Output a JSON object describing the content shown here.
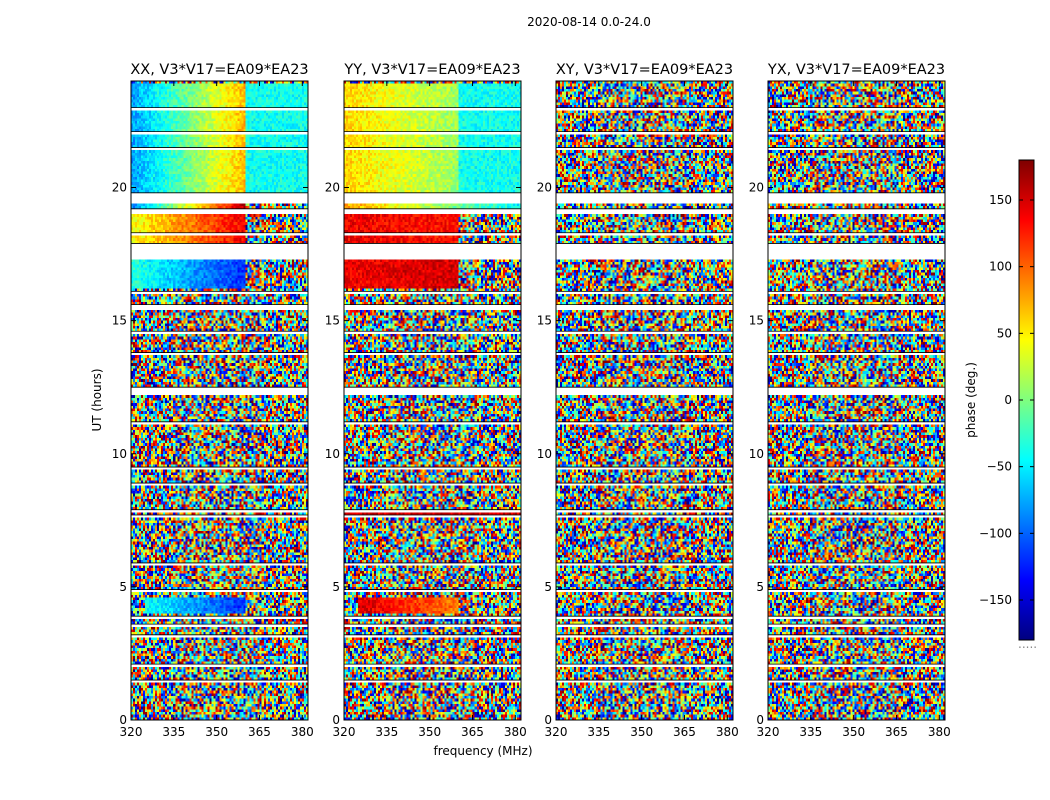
{
  "figure": {
    "suptitle": "2020-08-14 0.0-24.0",
    "xlabel": "frequency (MHz)",
    "ylabel": "UT (hours)",
    "colorbar_label": "phase (deg.)",
    "colorbar_ticks": [
      "150",
      "100",
      "50",
      "0",
      "−50",
      "−100",
      "−150"
    ],
    "colorbar_tick_values": [
      150,
      100,
      50,
      0,
      -50,
      -100,
      -150
    ],
    "colorbar_min_label": ".....",
    "colormap": "jet",
    "colormap_stops": [
      "#00007f",
      "#0000ff",
      "#007fff",
      "#00ffff",
      "#7fff7f",
      "#ffff00",
      "#ff7f00",
      "#ff0000",
      "#7f0000"
    ]
  },
  "chart_data": {
    "type": "heatmap",
    "value": "phase (deg.)",
    "clim": [
      -180,
      180
    ],
    "xlim": [
      320,
      382
    ],
    "ylim": [
      0,
      24
    ],
    "xticks": [
      320,
      335,
      350,
      365,
      380
    ],
    "xtick_labels": [
      "320",
      "335",
      "350",
      "365",
      "380"
    ],
    "yticks": [
      0,
      5,
      10,
      15,
      20
    ],
    "ytick_labels": [
      "0",
      "5",
      "10",
      "15",
      "20"
    ],
    "freq_bins": 88,
    "time_bins": 240,
    "flagged_ut_bands": [
      [
        1.4,
        1.5
      ],
      [
        2.0,
        2.1
      ],
      [
        3.1,
        3.2
      ],
      [
        3.5,
        3.6
      ],
      [
        3.8,
        3.9
      ],
      [
        4.8,
        4.9
      ],
      [
        5.8,
        5.9
      ],
      [
        7.6,
        7.7
      ],
      [
        7.8,
        7.9
      ],
      [
        8.8,
        8.9
      ],
      [
        9.4,
        9.5
      ],
      [
        11.1,
        11.2
      ],
      [
        12.2,
        12.5
      ],
      [
        13.7,
        13.8
      ],
      [
        14.5,
        14.6
      ],
      [
        15.4,
        15.6
      ],
      [
        16.0,
        16.1
      ],
      [
        17.3,
        17.9
      ],
      [
        18.2,
        18.3
      ],
      [
        19.0,
        19.2
      ],
      [
        19.4,
        19.8
      ],
      [
        21.4,
        21.5
      ],
      [
        22.0,
        22.1
      ],
      [
        22.9,
        23.0
      ]
    ],
    "panels": [
      {
        "title": "XX, V3*V17=EA09*EA23",
        "structured_segments": [
          {
            "ut_range": [
              16.2,
              17.3
            ],
            "freq_range": [
              320,
              360
            ],
            "phase_at_min_freq": -30,
            "phase_at_max_freq": -120
          },
          {
            "ut_range": [
              17.9,
              19.0
            ],
            "freq_range": [
              320,
              360
            ],
            "phase_at_min_freq": 40,
            "phase_at_max_freq": 140
          },
          {
            "ut_range": [
              19.2,
              19.4
            ],
            "freq_range": [
              320,
              360
            ],
            "phase_at_min_freq": -90,
            "phase_at_max_freq": 160
          },
          {
            "ut_range": [
              19.8,
              23.9
            ],
            "freq_range": [
              320,
              360
            ],
            "phase_at_min_freq": -80,
            "phase_at_max_freq": 70
          },
          {
            "ut_range": [
              19.8,
              23.9
            ],
            "freq_range": [
              360,
              382
            ],
            "phase_at_min_freq": -40,
            "phase_at_max_freq": -40
          },
          {
            "ut_range": [
              4.0,
              4.6
            ],
            "freq_range": [
              325,
              360
            ],
            "phase_at_min_freq": -40,
            "phase_at_max_freq": -120
          }
        ]
      },
      {
        "title": "YY, V3*V17=EA09*EA23",
        "structured_segments": [
          {
            "ut_range": [
              16.2,
              17.3
            ],
            "freq_range": [
              320,
              360
            ],
            "phase_at_min_freq": 140,
            "phase_at_max_freq": 150
          },
          {
            "ut_range": [
              17.9,
              19.0
            ],
            "freq_range": [
              320,
              360
            ],
            "phase_at_min_freq": 140,
            "phase_at_max_freq": 130
          },
          {
            "ut_range": [
              19.2,
              19.4
            ],
            "freq_range": [
              320,
              382
            ],
            "phase_at_min_freq": 80,
            "phase_at_max_freq": -50
          },
          {
            "ut_range": [
              19.8,
              23.9
            ],
            "freq_range": [
              320,
              360
            ],
            "phase_at_min_freq": 60,
            "phase_at_max_freq": 10
          },
          {
            "ut_range": [
              19.8,
              23.9
            ],
            "freq_range": [
              360,
              382
            ],
            "phase_at_min_freq": -40,
            "phase_at_max_freq": -40
          },
          {
            "ut_range": [
              4.0,
              4.6
            ],
            "freq_range": [
              325,
              360
            ],
            "phase_at_min_freq": 150,
            "phase_at_max_freq": 90
          },
          {
            "ut_range": [
              7.7,
              7.8
            ],
            "freq_range": [
              320,
              382
            ],
            "phase_at_min_freq": 150,
            "phase_at_max_freq": 150
          }
        ]
      },
      {
        "title": "XY, V3*V17=EA09*EA23",
        "structured_segments": []
      },
      {
        "title": "YX, V3*V17=EA09*EA23",
        "structured_segments": []
      }
    ]
  }
}
